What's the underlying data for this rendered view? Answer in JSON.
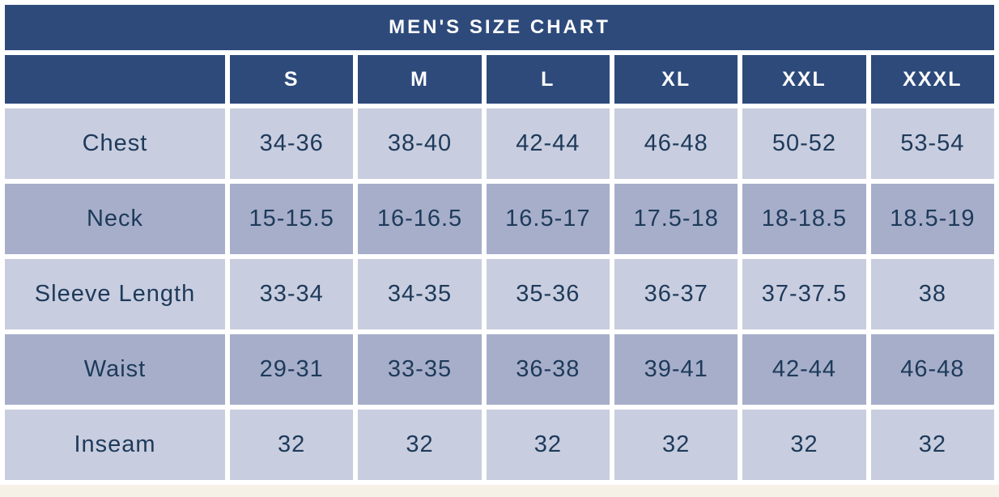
{
  "chart_data": {
    "type": "table",
    "title": "MEN'S SIZE CHART",
    "columns": [
      "",
      "S",
      "M",
      "L",
      "XL",
      "XXL",
      "XXXL"
    ],
    "rows": [
      {
        "label": "Chest",
        "values": [
          "34-36",
          "38-40",
          "42-44",
          "46-48",
          "50-52",
          "53-54"
        ]
      },
      {
        "label": "Neck",
        "values": [
          "15-15.5",
          "16-16.5",
          "16.5-17",
          "17.5-18",
          "18-18.5",
          "18.5-19"
        ]
      },
      {
        "label": "Sleeve Length",
        "values": [
          "33-34",
          "34-35",
          "35-36",
          "36-37",
          "37-37.5",
          "38"
        ]
      },
      {
        "label": "Waist",
        "values": [
          "29-31",
          "33-35",
          "36-38",
          "39-41",
          "42-44",
          "46-48"
        ]
      },
      {
        "label": "Inseam",
        "values": [
          "32",
          "32",
          "32",
          "32",
          "32",
          "32"
        ]
      }
    ],
    "layout_hints": {
      "striping": [
        "light",
        "dark",
        "light",
        "dark",
        "light"
      ],
      "header_style": "solid navy with white text",
      "cell_gaps": "white grid gaps"
    }
  },
  "colors": {
    "header_navy": "#2d4a7b",
    "row_light": "#c8cddf",
    "row_dark": "#a6aeca",
    "cell_text": "#1e3a5a",
    "header_text": "#fcfcfc",
    "grid_gap": "#ffffff",
    "page_background": "#f5f1e7"
  }
}
